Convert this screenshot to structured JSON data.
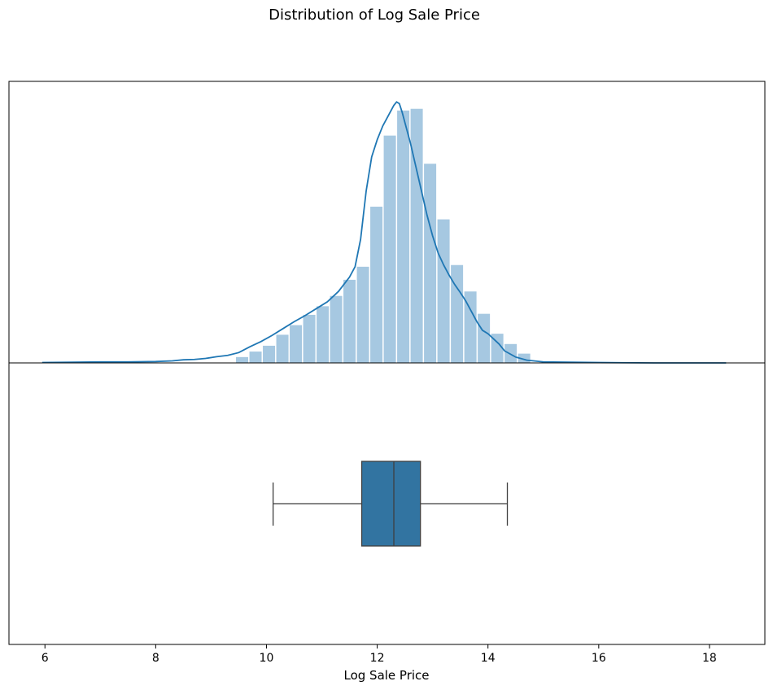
{
  "chart_data": {
    "title": "Distribution of Log Sale Price",
    "xlabel": "Log Sale Price",
    "xlim": [
      5.35,
      19.0
    ],
    "xticks": [
      6,
      8,
      10,
      12,
      14,
      16,
      18
    ],
    "grid": false,
    "panels": [
      {
        "type": "histogram",
        "bin_width": 0.2425,
        "bins": [
          {
            "x0": 9.45,
            "density": 0.017
          },
          {
            "x0": 9.6925,
            "density": 0.033
          },
          {
            "x0": 9.935,
            "density": 0.05
          },
          {
            "x0": 10.1775,
            "density": 0.082
          },
          {
            "x0": 10.42,
            "density": 0.11
          },
          {
            "x0": 10.6625,
            "density": 0.14
          },
          {
            "x0": 10.905,
            "density": 0.165
          },
          {
            "x0": 11.1475,
            "density": 0.195
          },
          {
            "x0": 11.39,
            "density": 0.242
          },
          {
            "x0": 11.6325,
            "density": 0.28
          },
          {
            "x0": 11.875,
            "density": 0.455
          },
          {
            "x0": 12.1175,
            "density": 0.662
          },
          {
            "x0": 12.36,
            "density": 0.735
          },
          {
            "x0": 12.6025,
            "density": 0.74
          },
          {
            "x0": 12.845,
            "density": 0.58
          },
          {
            "x0": 13.0875,
            "density": 0.418
          },
          {
            "x0": 13.33,
            "density": 0.285
          },
          {
            "x0": 13.5725,
            "density": 0.208
          },
          {
            "x0": 13.815,
            "density": 0.143
          },
          {
            "x0": 14.0575,
            "density": 0.085
          },
          {
            "x0": 14.3,
            "density": 0.055
          },
          {
            "x0": 14.5425,
            "density": 0.027
          }
        ],
        "kde": {
          "x": [
            5.95,
            6.5,
            7.0,
            7.5,
            8.0,
            8.3,
            8.5,
            8.7,
            8.9,
            9.1,
            9.3,
            9.5,
            9.7,
            9.9,
            10.1,
            10.3,
            10.5,
            10.7,
            10.9,
            11.1,
            11.3,
            11.5,
            11.6,
            11.7,
            11.8,
            11.9,
            12.0,
            12.1,
            12.2,
            12.3,
            12.35,
            12.4,
            12.45,
            12.5,
            12.6,
            12.7,
            12.8,
            12.9,
            13.0,
            13.1,
            13.2,
            13.3,
            13.4,
            13.5,
            13.6,
            13.7,
            13.8,
            13.9,
            14.0,
            14.1,
            14.2,
            14.3,
            14.5,
            14.7,
            15.0,
            15.5,
            16.0,
            17.0,
            18.3
          ],
          "y": [
            0.001,
            0.002,
            0.003,
            0.003,
            0.004,
            0.006,
            0.009,
            0.01,
            0.013,
            0.018,
            0.022,
            0.03,
            0.047,
            0.062,
            0.08,
            0.1,
            0.12,
            0.138,
            0.158,
            0.178,
            0.208,
            0.25,
            0.28,
            0.36,
            0.5,
            0.6,
            0.65,
            0.69,
            0.72,
            0.75,
            0.76,
            0.755,
            0.73,
            0.7,
            0.64,
            0.57,
            0.5,
            0.43,
            0.37,
            0.32,
            0.285,
            0.255,
            0.228,
            0.205,
            0.18,
            0.15,
            0.12,
            0.095,
            0.085,
            0.07,
            0.055,
            0.035,
            0.017,
            0.008,
            0.003,
            0.002,
            0.001,
            0.0,
            0.0
          ]
        },
        "colors": {
          "bars": "#a6c8e1",
          "kde": "#1f77b4"
        }
      },
      {
        "type": "box",
        "whisker_low": 10.12,
        "q1": 11.72,
        "median": 12.3,
        "q3": 12.78,
        "whisker_high": 14.35,
        "colors": {
          "box": "#3274a1",
          "lines": "#3f3f3f"
        }
      }
    ]
  }
}
